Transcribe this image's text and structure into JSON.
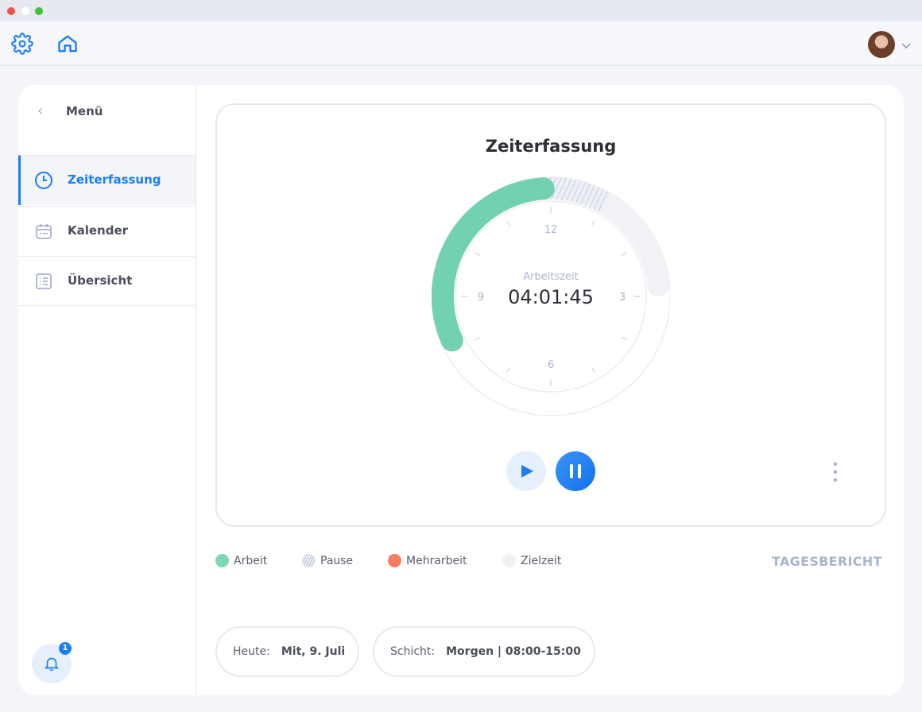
{
  "topbar": {
    "settings_icon": "gear-icon",
    "home_icon": "home-icon",
    "avatar": "user-avatar"
  },
  "sidebar": {
    "title": "Menü",
    "items": [
      {
        "label": "Zeiterfassung",
        "icon": "clock-icon",
        "active": true
      },
      {
        "label": "Kalender",
        "icon": "calendar-icon"
      },
      {
        "label": "Übersicht",
        "icon": "list-icon"
      }
    ],
    "notifications": "1"
  },
  "main": {
    "title": "Zeiterfassung",
    "clock": {
      "label": "Arbeitszeit",
      "value": "04:01:45",
      "hour_labels": [
        "12",
        "3",
        "6",
        "9"
      ],
      "segments": {
        "work_start_h": 8.2,
        "work_end_h": 11.87,
        "pause_end_h": 1.0,
        "target_end_h": 2.8
      }
    },
    "report_label": "TAGESBERICHT"
  },
  "legend": [
    {
      "label": "Arbeit",
      "color": "#7fd8b4"
    },
    {
      "label": "Pause",
      "color": "hatch"
    },
    {
      "label": "Mehrarbeit",
      "color": "#f57e60"
    },
    {
      "label": "Zielzeit",
      "color": "#eff1f5"
    }
  ],
  "info": {
    "today_label": "Heute:",
    "today_value": "Mit, 9. Juli",
    "shift_label": "Schicht:",
    "shift_value": "Morgen | 08:00-15:00"
  }
}
